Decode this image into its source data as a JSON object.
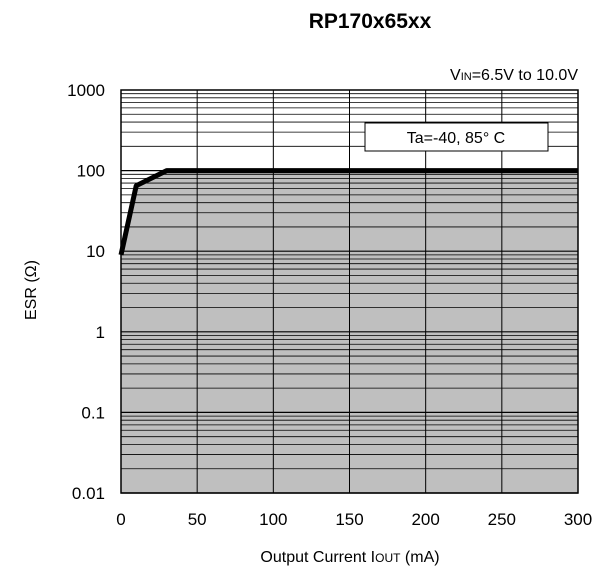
{
  "chart_data": {
    "type": "area",
    "title": "RP170x65xx",
    "xlabel_main": "Output  Current I",
    "xlabel_sub": "OUT",
    "xlabel_unit": " (mA)",
    "ylabel": "ESR (Ω)",
    "condition_main": "V",
    "condition_sub": "IN",
    "condition_rest": "=6.5V to 10.0V",
    "annotation": "Ta=-40, 85°  C",
    "xlim": [
      0,
      300
    ],
    "ylim": [
      0.01,
      1000
    ],
    "yscale": "log",
    "grid": true,
    "x_ticks": [
      0,
      50,
      100,
      150,
      200,
      250,
      300
    ],
    "y_ticks": [
      {
        "value": 0.01,
        "label": "0.01"
      },
      {
        "value": 0.1,
        "label": "0.1"
      },
      {
        "value": 1,
        "label": "1"
      },
      {
        "value": 10,
        "label": "10"
      },
      {
        "value": 100,
        "label": "100"
      },
      {
        "value": 1000,
        "label": "1000"
      }
    ],
    "series": [
      {
        "x": [
          0,
          10,
          30,
          300
        ],
        "y": [
          9,
          65,
          100,
          100
        ],
        "fill": "below",
        "color": "#000000",
        "fill_color": "#bfbfbf"
      }
    ]
  }
}
